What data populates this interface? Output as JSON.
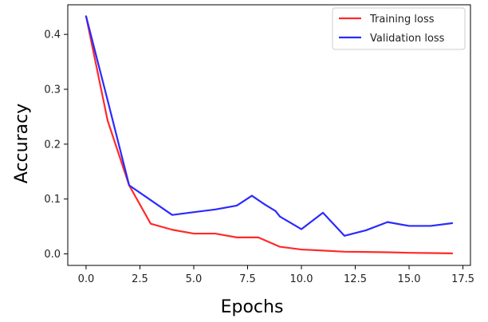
{
  "chart_data": {
    "type": "line",
    "title": "",
    "xlabel": "Epochs",
    "ylabel": "Accuracy",
    "xlim": [
      -0.85,
      17.85
    ],
    "ylim": [
      -0.021,
      0.454
    ],
    "xticks": [
      0.0,
      2.5,
      5.0,
      7.5,
      10.0,
      12.5,
      15.0,
      17.5
    ],
    "xtick_labels": [
      "0.0",
      "2.5",
      "5.0",
      "7.5",
      "10.0",
      "12.5",
      "15.0",
      "17.5"
    ],
    "yticks": [
      0.0,
      0.1,
      0.2,
      0.3,
      0.4
    ],
    "ytick_labels": [
      "0.0",
      "0.1",
      "0.2",
      "0.3",
      "0.4"
    ],
    "grid": false,
    "legend_position": "top-right",
    "series": [
      {
        "name": "Training loss",
        "color": "#ff2a2a",
        "x": [
          0,
          1,
          2,
          3,
          4,
          5,
          6,
          7,
          8,
          9,
          10,
          11,
          12,
          13,
          14,
          15,
          16,
          17
        ],
        "y": [
          0.433,
          0.243,
          0.125,
          0.055,
          0.044,
          0.037,
          0.037,
          0.03,
          0.03,
          0.013,
          0.008,
          0.006,
          0.004,
          0.0035,
          0.003,
          0.002,
          0.0015,
          0.001
        ]
      },
      {
        "name": "Validation loss",
        "color": "#2a2aff",
        "x": [
          0,
          1,
          2,
          3,
          4,
          5,
          6,
          7,
          7.7,
          8.3,
          8.8,
          9,
          10,
          11,
          12,
          13,
          14,
          15,
          16,
          17
        ],
        "y": [
          0.433,
          0.28,
          0.125,
          0.098,
          0.071,
          0.076,
          0.081,
          0.088,
          0.106,
          0.09,
          0.078,
          0.068,
          0.045,
          0.075,
          0.033,
          0.043,
          0.058,
          0.051,
          0.051,
          0.056
        ]
      }
    ]
  }
}
